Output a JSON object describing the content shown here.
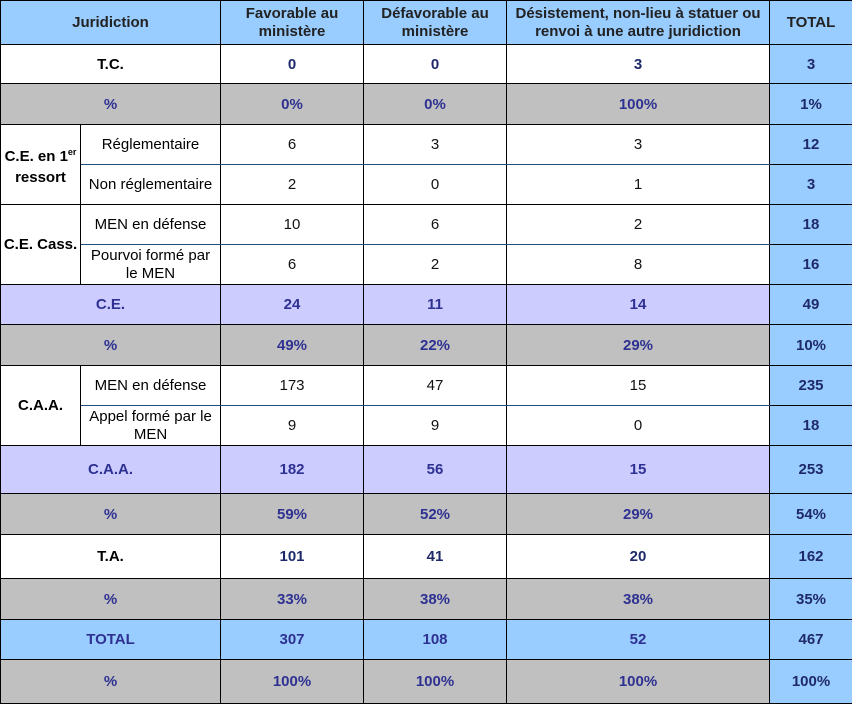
{
  "headers": {
    "juridiction": "Juridiction",
    "favorable": "Favorable au ministère",
    "defavorable": "Défavorable au ministère",
    "desistement": "Désistement, non-lieu à statuer ou renvoi à une autre juridiction",
    "total": "TOTAL"
  },
  "tc": {
    "label": "T.C.",
    "fav": "0",
    "def": "0",
    "des": "3",
    "total": "3"
  },
  "tc_pct": {
    "label": "%",
    "fav": "0%",
    "def": "0%",
    "des": "100%",
    "total": "1%"
  },
  "ce1": {
    "group_label_a": "C.E. en 1",
    "group_label_sup": "er",
    "group_label_b": "ressort",
    "rows": [
      {
        "label": "Réglementaire",
        "fav": "6",
        "def": "3",
        "des": "3",
        "total": "12"
      },
      {
        "label": "Non réglementaire",
        "fav": "2",
        "def": "0",
        "des": "1",
        "total": "3"
      }
    ]
  },
  "cecass": {
    "group_label": "C.E. Cass.",
    "rows": [
      {
        "label": "MEN en défense",
        "fav": "10",
        "def": "6",
        "des": "2",
        "total": "18"
      },
      {
        "label": "Pourvoi formé par le MEN",
        "fav": "6",
        "def": "2",
        "des": "8",
        "total": "16"
      }
    ]
  },
  "ce_total": {
    "label": "C.E.",
    "fav": "24",
    "def": "11",
    "des": "14",
    "total": "49"
  },
  "ce_pct": {
    "label": "%",
    "fav": "49%",
    "def": "22%",
    "des": "29%",
    "total": "10%"
  },
  "caa": {
    "group_label": "C.A.A.",
    "rows": [
      {
        "label": "MEN en défense",
        "fav": "173",
        "def": "47",
        "des": "15",
        "total": "235"
      },
      {
        "label": "Appel formé par le MEN",
        "fav": "9",
        "def": "9",
        "des": "0",
        "total": "18"
      }
    ]
  },
  "caa_total": {
    "label": "C.A.A.",
    "fav": "182",
    "def": "56",
    "des": "15",
    "total": "253"
  },
  "caa_pct": {
    "label": "%",
    "fav": "59%",
    "def": "52%",
    "des": "29%",
    "total": "54%"
  },
  "ta": {
    "label": "T.A.",
    "fav": "101",
    "def": "41",
    "des": "20",
    "total": "162"
  },
  "ta_pct": {
    "label": "%",
    "fav": "33%",
    "def": "38%",
    "des": "38%",
    "total": "35%"
  },
  "grand_total": {
    "label": "TOTAL",
    "fav": "307",
    "def": "108",
    "des": "52",
    "total": "467"
  },
  "grand_pct": {
    "label": "%",
    "fav": "100%",
    "def": "100%",
    "des": "100%",
    "total": "100%"
  }
}
